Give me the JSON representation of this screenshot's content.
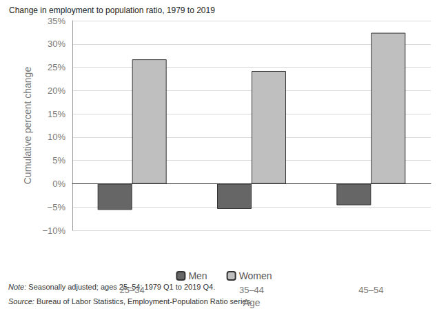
{
  "chart_data": {
    "type": "bar",
    "title": "Change in employment to population ratio, 1979 to 2019",
    "x_label": "Age",
    "y_label": "Cumulative percent change",
    "categories": [
      "25–34",
      "35–44",
      "45–54"
    ],
    "series": [
      {
        "name": "Men",
        "color": "#666666",
        "values": [
          -5.6,
          -5.4,
          -4.6
        ]
      },
      {
        "name": "Women",
        "color": "#bfbfbf",
        "values": [
          26.7,
          24.2,
          32.4
        ]
      }
    ],
    "ylim": [
      -10,
      35
    ],
    "yticks": [
      {
        "value": -10,
        "label": "−10%"
      },
      {
        "value": -5,
        "label": "−5%"
      },
      {
        "value": 0,
        "label": "0%"
      },
      {
        "value": 5,
        "label": "5%"
      },
      {
        "value": 10,
        "label": "10%"
      },
      {
        "value": 15,
        "label": "15%"
      },
      {
        "value": 20,
        "label": "20%"
      },
      {
        "value": 25,
        "label": "25%"
      },
      {
        "value": 30,
        "label": "30%"
      },
      {
        "value": 35,
        "label": "35%"
      }
    ],
    "grid": true,
    "legend": "bottom",
    "notes": [
      "Note: Seasonally adjusted; ages 25–54; 1979 Q1 to 2019 Q4.",
      "Source: Bureau of Labor Statistics, Employment-Population Ratio series."
    ]
  }
}
